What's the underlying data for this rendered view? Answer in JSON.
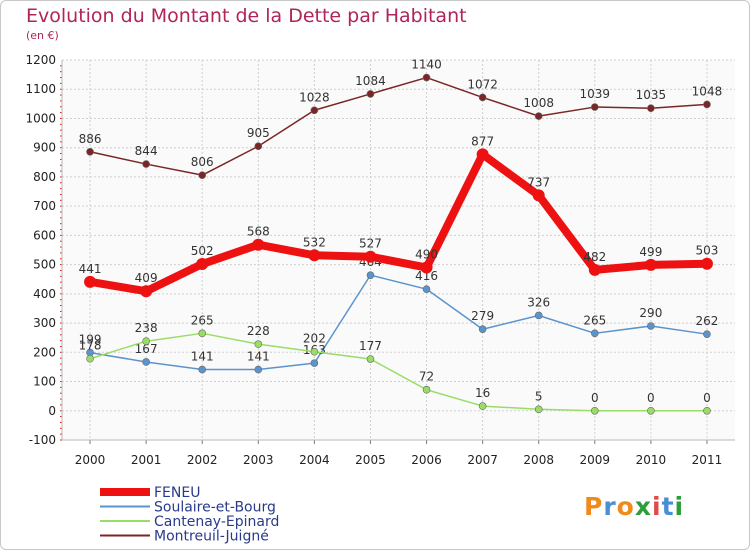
{
  "title": "Evolution du Montant de la Dette par Habitant",
  "subtitle": "(en €)",
  "logo": {
    "text": "Proxiti",
    "colors": [
      "#f08a1c",
      "#4a8fd6",
      "#f08a1c",
      "#2e9d3a",
      "#e04a4a",
      "#4a8fd6",
      "#2e9d3a"
    ]
  },
  "chart_data": {
    "type": "line",
    "categories": [
      "2000",
      "2001",
      "2002",
      "2003",
      "2004",
      "2005",
      "2006",
      "2007",
      "2008",
      "2009",
      "2010",
      "2011"
    ],
    "ylim": [
      -100,
      1200
    ],
    "yticks": [
      "-100",
      "0",
      "100",
      "200",
      "300",
      "400",
      "500",
      "600",
      "700",
      "800",
      "900",
      "1000",
      "1100",
      "1200"
    ],
    "grid": true,
    "legend_position": "bottom-left",
    "series": [
      {
        "name": "Montreuil-Juigné",
        "color": "#7a2626",
        "values": [
          886,
          844,
          806,
          905,
          1028,
          1084,
          1140,
          1072,
          1008,
          1039,
          1035,
          1048
        ],
        "labels": [
          "886",
          "844",
          "806",
          "905",
          "1028",
          "1084",
          "1140",
          "1072",
          "1008",
          "1039",
          "1035",
          "1048"
        ]
      },
      {
        "name": "Soulaire-et-Bourg",
        "color": "#5b94cc",
        "values": [
          199,
          167,
          141,
          141,
          163,
          464,
          416,
          279,
          326,
          265,
          290,
          262
        ],
        "labels": [
          "199",
          "167",
          "141",
          "141",
          "163",
          "464",
          "416",
          "279",
          "326",
          "265",
          "290",
          "262"
        ]
      },
      {
        "name": "Cantenay-Epinard",
        "color": "#99dd66",
        "values": [
          178,
          238,
          265,
          228,
          202,
          177,
          72,
          16,
          5,
          0,
          0,
          0
        ],
        "labels": [
          "178",
          "238",
          "265",
          "228",
          "202",
          "177",
          "72",
          "16",
          "5",
          "0",
          "0",
          "0"
        ]
      },
      {
        "name": "FENEU",
        "color": "#ee1111",
        "values": [
          441,
          409,
          502,
          568,
          532,
          527,
          490,
          877,
          737,
          482,
          499,
          503
        ],
        "labels": [
          "441",
          "409",
          "502",
          "568",
          "532",
          "527",
          "490",
          "877",
          "737",
          "482",
          "499",
          "503"
        ]
      }
    ],
    "legend": [
      "FENEU",
      "Soulaire-et-Bourg",
      "Cantenay-Epinard",
      "Montreuil-Juigné"
    ]
  }
}
